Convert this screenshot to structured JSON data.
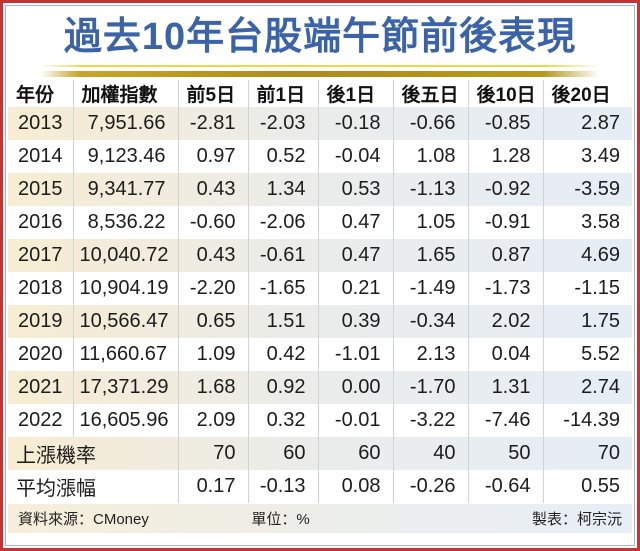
{
  "title": "過去10年台股端午節前後表現",
  "chart_data": {
    "type": "table",
    "title": "過去10年台股端午節前後表現",
    "unit": "%",
    "columns": [
      "年份",
      "加權指數",
      "前5日",
      "前1日",
      "後1日",
      "後五日",
      "後10日",
      "後20日"
    ],
    "rows": [
      [
        "2013",
        "7,951.66",
        "-2.81",
        "-2.03",
        "-0.18",
        "-0.66",
        "-0.85",
        "2.87"
      ],
      [
        "2014",
        "9,123.46",
        "0.97",
        "0.52",
        "-0.04",
        "1.08",
        "1.28",
        "3.49"
      ],
      [
        "2015",
        "9,341.77",
        "0.43",
        "1.34",
        "0.53",
        "-1.13",
        "-0.92",
        "-3.59"
      ],
      [
        "2016",
        "8,536.22",
        "-0.60",
        "-2.06",
        "0.47",
        "1.05",
        "-0.91",
        "3.58"
      ],
      [
        "2017",
        "10,040.72",
        "0.43",
        "-0.61",
        "0.47",
        "1.65",
        "0.87",
        "4.69"
      ],
      [
        "2018",
        "10,904.19",
        "-2.20",
        "-1.65",
        "0.21",
        "-1.49",
        "-1.73",
        "-1.15"
      ],
      [
        "2019",
        "10,566.47",
        "0.65",
        "1.51",
        "0.39",
        "-0.34",
        "2.02",
        "1.75"
      ],
      [
        "2020",
        "11,660.67",
        "1.09",
        "0.42",
        "-1.01",
        "2.13",
        "0.04",
        "5.52"
      ],
      [
        "2021",
        "17,371.29",
        "1.68",
        "0.92",
        "0.00",
        "-1.70",
        "1.31",
        "2.74"
      ],
      [
        "2022",
        "16,605.96",
        "2.09",
        "0.32",
        "-0.01",
        "-3.22",
        "-7.46",
        "-14.39"
      ]
    ],
    "summary_rows": [
      [
        "上漲機率",
        "70",
        "60",
        "60",
        "40",
        "50",
        "70"
      ],
      [
        "平均漲幅",
        "0.17",
        "-0.13",
        "0.08",
        "-0.26",
        "-0.64",
        "0.55"
      ]
    ]
  },
  "footer": {
    "source": "資料來源：CMoney",
    "unit": "單位：%",
    "credit": "製表：柯宗沅"
  },
  "colors": {
    "title_blue": "#3b63a8",
    "frame_red": "#c53434",
    "rule_gold": "#ab8d18",
    "stripe_left_cream": "#f7edd2",
    "stripe_right_blue": "#e6edf5",
    "separator_gray": "#cfd4da"
  }
}
